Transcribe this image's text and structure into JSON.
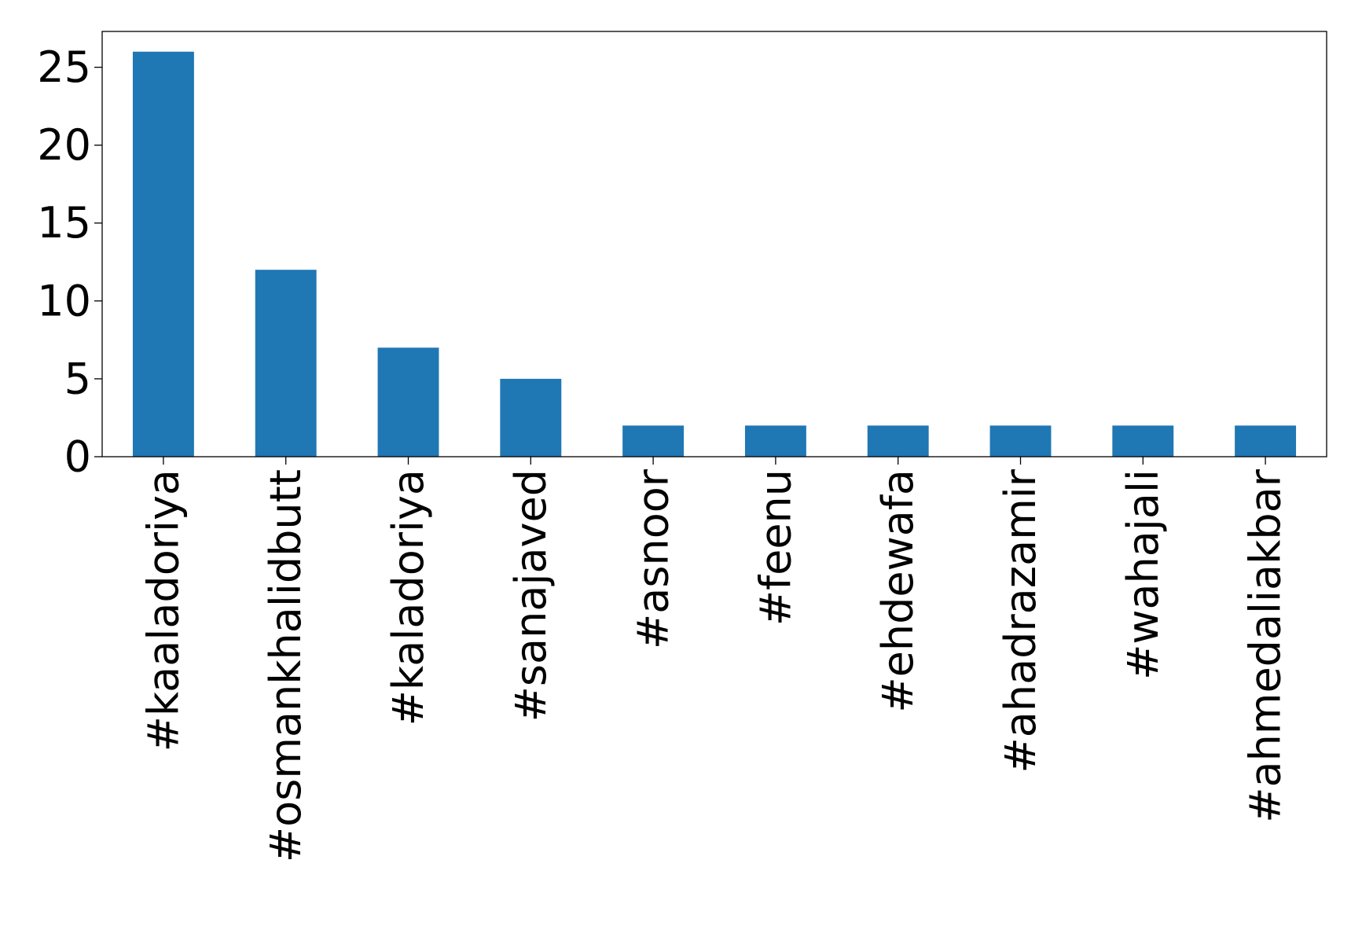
{
  "chart_data": {
    "type": "bar",
    "title": "",
    "xlabel": "",
    "ylabel": "",
    "categories": [
      "#kaaladoriya",
      "#osmankhalidbutt",
      "#kaladoriya",
      "#sanajaved",
      "#asnoor",
      "#feenu",
      "#ehdewafa",
      "#ahadrazamir",
      "#wahajali",
      "#ahmedaliakbar"
    ],
    "values": [
      26,
      12,
      7,
      5,
      2,
      2,
      2,
      2,
      2,
      2
    ],
    "ylim": [
      0,
      27.3
    ],
    "yticks": [
      "0",
      "5",
      "10",
      "15",
      "20",
      "25"
    ],
    "bar_color": "#1f77b4",
    "grid": false,
    "legend": "none"
  }
}
